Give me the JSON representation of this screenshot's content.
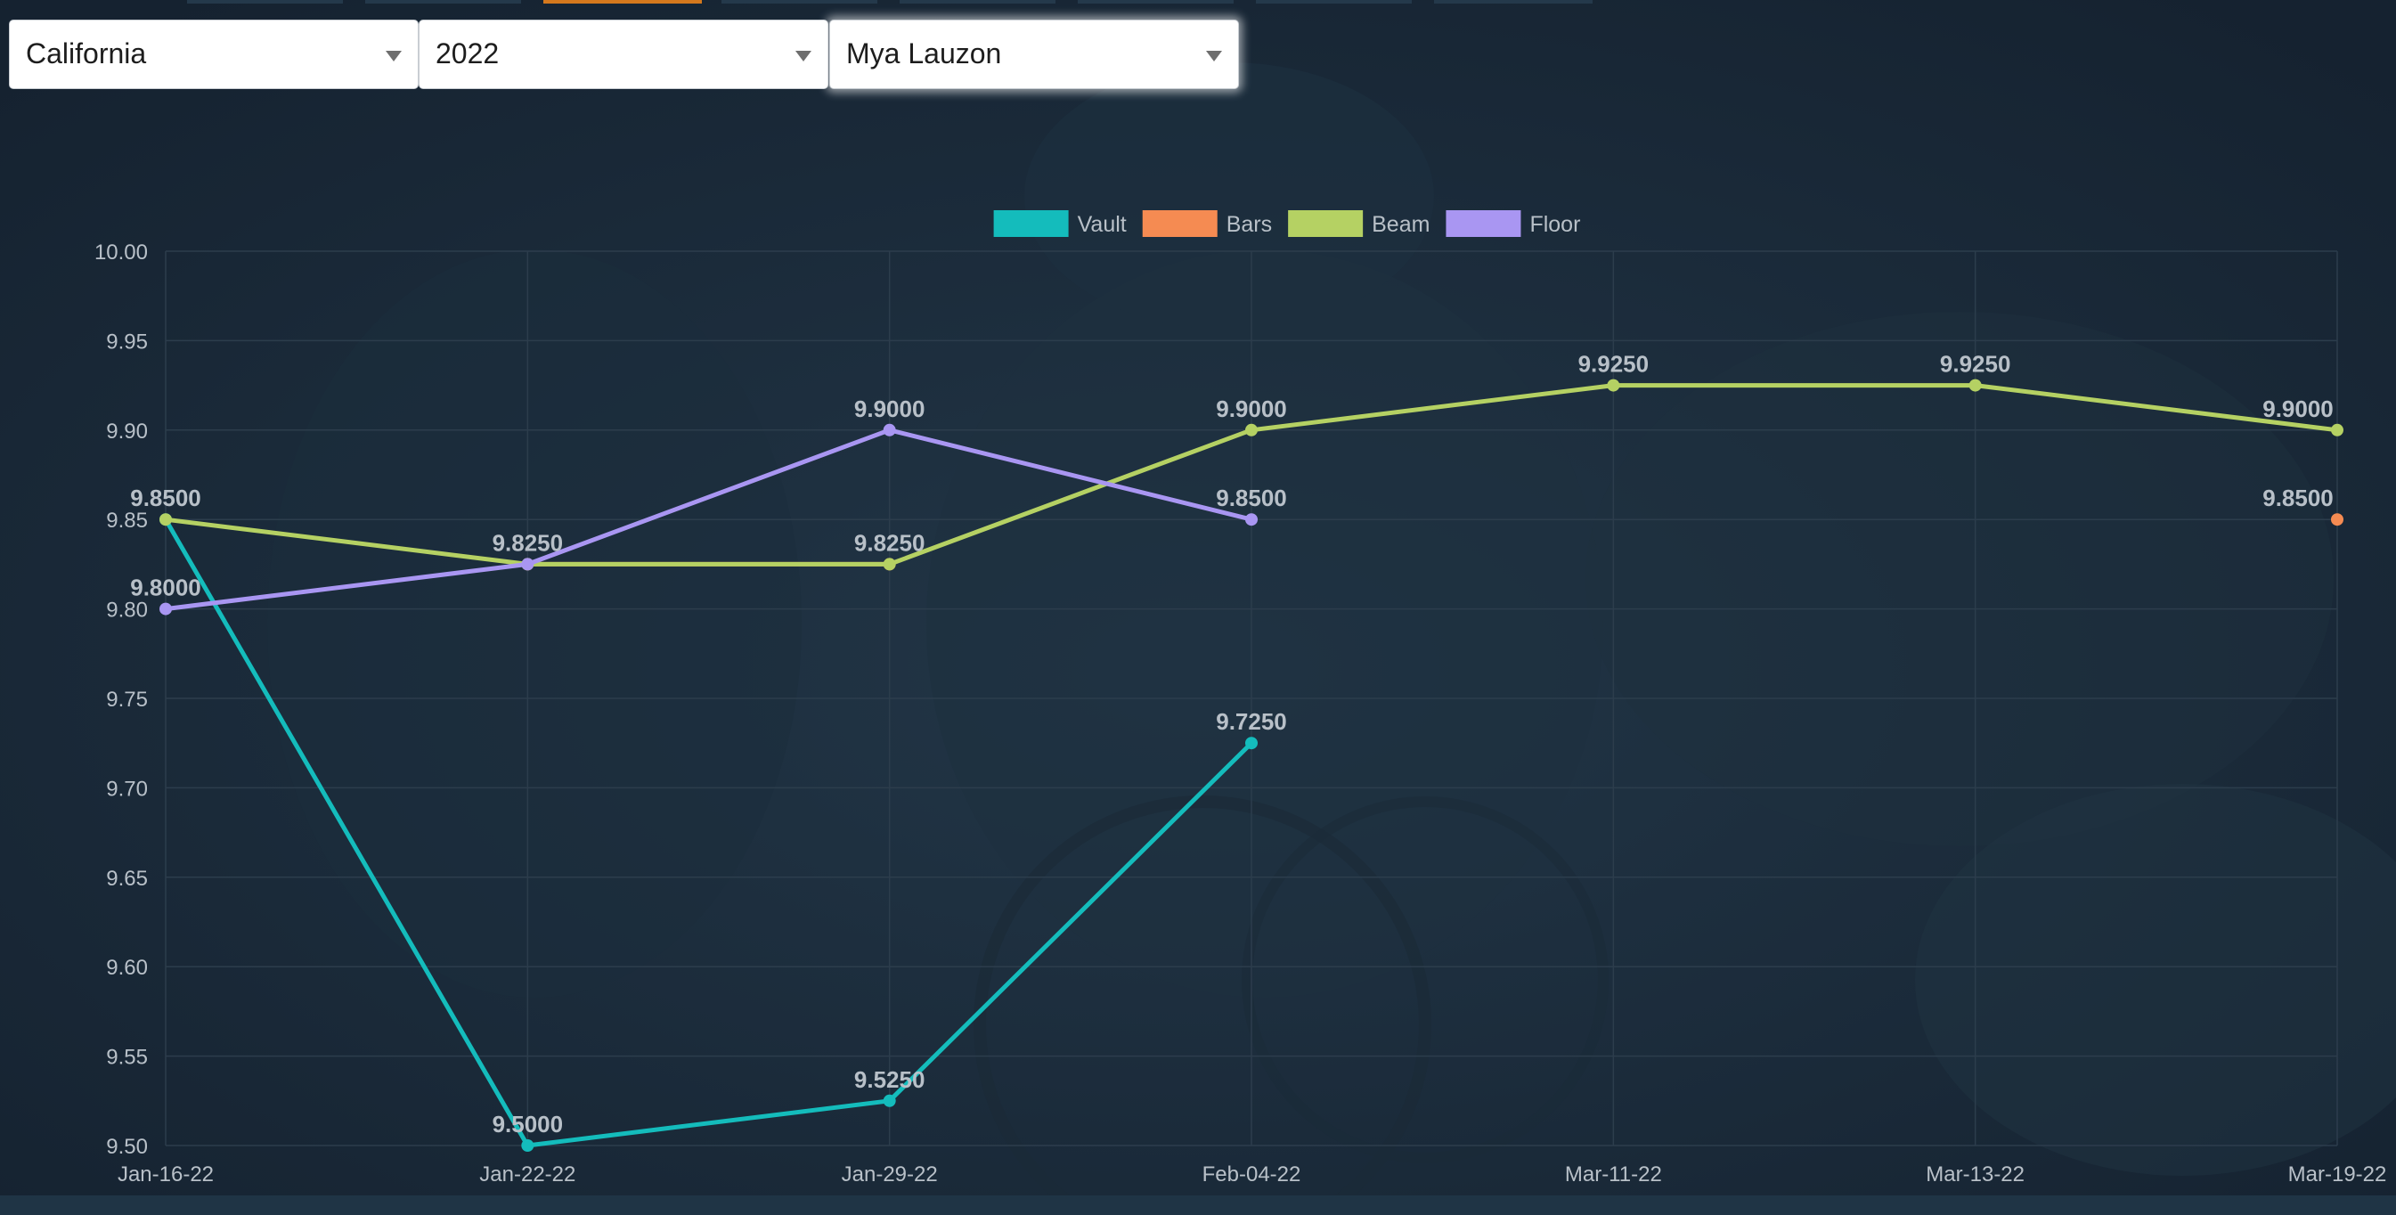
{
  "filters": {
    "state": "California",
    "year": "2022",
    "athlete": "Mya Lauzon"
  },
  "colors": {
    "background": "#172532",
    "grid": "#2c3d4c",
    "text": "#b8c0c8",
    "vault": "#14bcbc",
    "bars": "#f58b52",
    "beam": "#b5d163",
    "floor": "#a996f2"
  },
  "chart_data": {
    "type": "line",
    "title": "",
    "xlabel": "",
    "ylabel": "",
    "legend_position": "top-center",
    "grid": true,
    "ylim": [
      9.5,
      10.0
    ],
    "y_ticks": [
      "9.50",
      "9.55",
      "9.60",
      "9.65",
      "9.70",
      "9.75",
      "9.80",
      "9.85",
      "9.90",
      "9.95",
      "10.00"
    ],
    "categories": [
      "Jan-16-22",
      "Jan-22-22",
      "Jan-29-22",
      "Feb-04-22",
      "Mar-11-22",
      "Mar-13-22",
      "Mar-19-22"
    ],
    "series": [
      {
        "name": "Vault",
        "color": "#14bcbc",
        "values": [
          9.85,
          9.5,
          9.525,
          9.725,
          null,
          null,
          null
        ],
        "labels": [
          "9.8500",
          "9.5000",
          "9.5250",
          "9.7250",
          "",
          "",
          ""
        ]
      },
      {
        "name": "Bars",
        "color": "#f58b52",
        "values": [
          null,
          9.825,
          9.825,
          null,
          null,
          null,
          9.85
        ],
        "labels": [
          "",
          "9.8250",
          "9.8250",
          "",
          "",
          "",
          "9.8500"
        ]
      },
      {
        "name": "Beam",
        "color": "#b5d163",
        "values": [
          9.85,
          9.825,
          9.825,
          9.9,
          9.925,
          9.925,
          9.9
        ],
        "labels": [
          "",
          "",
          "",
          "9.9000",
          "9.9250",
          "9.9250",
          "9.9000"
        ]
      },
      {
        "name": "Floor",
        "color": "#a996f2",
        "values": [
          9.8,
          9.825,
          9.9,
          9.85,
          null,
          null,
          null
        ],
        "labels": [
          "9.8000",
          "",
          "9.9000",
          "9.8500",
          "",
          "",
          ""
        ]
      }
    ]
  }
}
